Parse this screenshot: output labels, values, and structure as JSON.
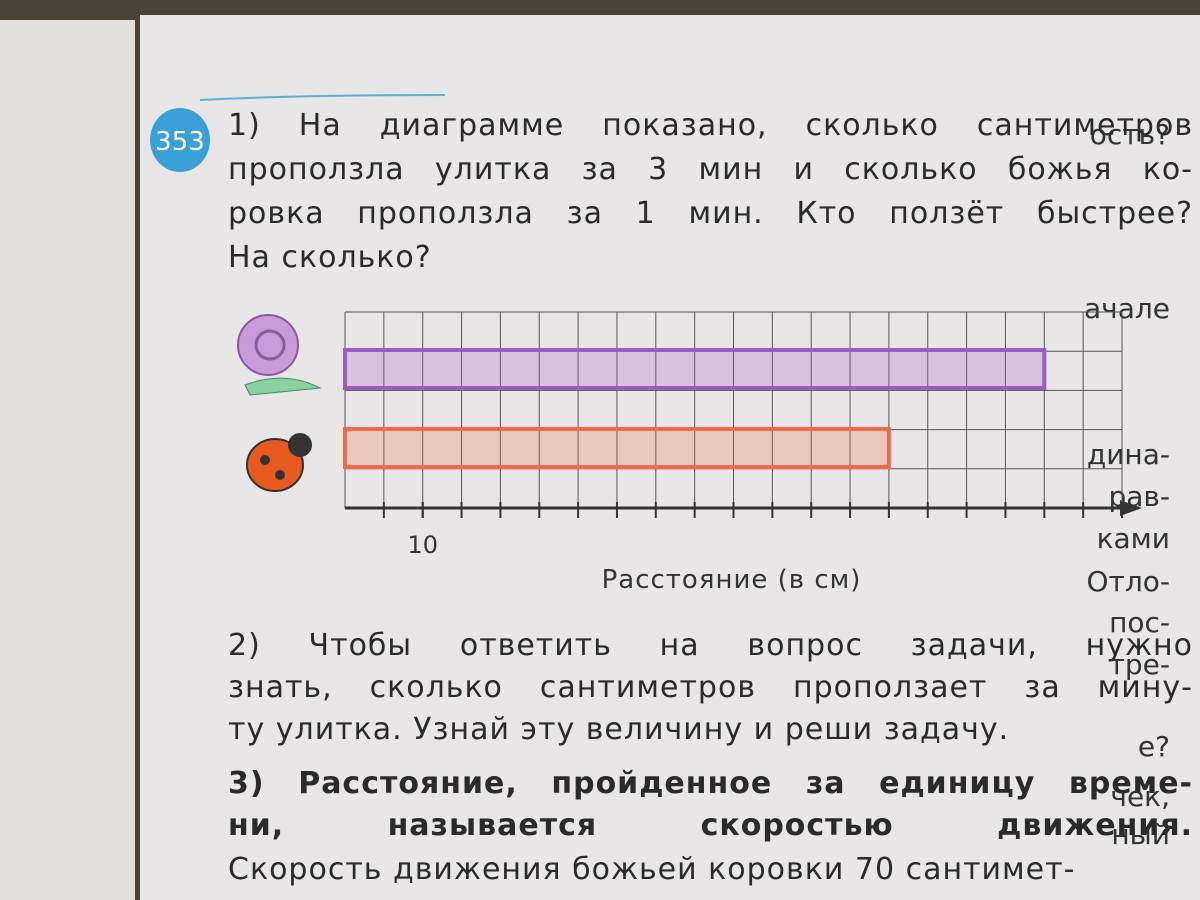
{
  "left_page": {
    "lines": [
      "ость?",
      "ачале",
      "дина-",
      "рав-",
      "ками",
      "Отло-",
      "пос-",
      "тре-",
      "е?",
      "чек,",
      "ный"
    ]
  },
  "problem": {
    "number": "353",
    "part1": [
      "1) На диаграмме показано, сколько сантиметров",
      "проползла улитка за 3 мин и сколько божья ко-",
      "ровка проползла за 1 мин. Кто ползёт быстрее?",
      "На сколько?"
    ],
    "part2": [
      "2) Чтобы ответить на вопрос задачи, нужно",
      "знать, сколько сантиметров проползает за мину-",
      "ту улитка. Узнай эту величину и реши задачу."
    ],
    "part3": [
      "3) Расстояние, пройденное за единицу време-",
      "ни, называется скоростью движения."
    ],
    "part4": [
      "Скорость движения божьей коровки 70 сантимет-"
    ]
  },
  "chart_data": {
    "type": "bar",
    "orientation": "horizontal",
    "xlabel": "Расстояние (в см)",
    "categories": [
      null,
      null
    ],
    "values": [
      90,
      70
    ],
    "colors": [
      "#9a5cc0",
      "#ee6a4a"
    ],
    "xlim": [
      0,
      100
    ],
    "xticks": [
      10
    ],
    "grid": true
  }
}
